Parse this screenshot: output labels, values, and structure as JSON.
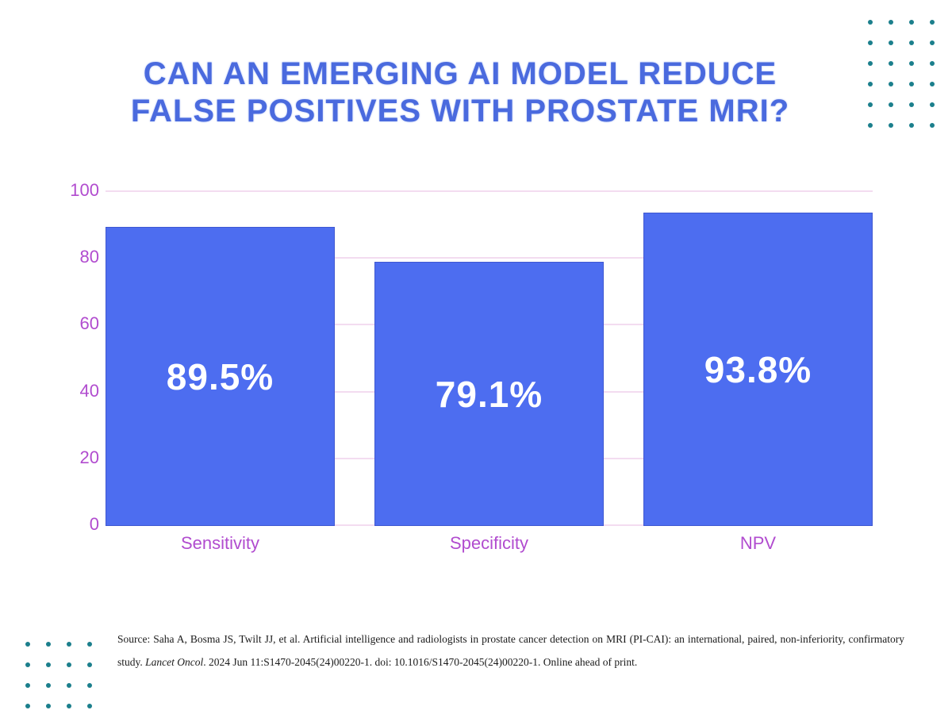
{
  "title": {
    "line1": "CAN AN EMERGING AI MODEL REDUCE",
    "line2": "FALSE POSITIVES WITH PROSTATE MRI?"
  },
  "chart_data": {
    "type": "bar",
    "categories": [
      "Sensitivity",
      "Specificity",
      "NPV"
    ],
    "values": [
      89.5,
      79.1,
      93.8
    ],
    "bar_labels": [
      "89.5%",
      "79.1%",
      "93.8%"
    ],
    "yticks": [
      0,
      20,
      40,
      60,
      80,
      100
    ],
    "ylim": [
      0,
      100
    ],
    "grid": true,
    "legend": "none",
    "title": "",
    "xlabel": "",
    "ylabel": ""
  },
  "colors": {
    "title_blue": "#4a6ade",
    "bar_blue": "#4d6df0",
    "bar_border": "#2f3faa",
    "axis_purple": "#b14ccf",
    "gridline_pink": "#f3dcf0",
    "dot_teal": "#1b7f8c",
    "value_label_white": "#ffffff",
    "source_text": "#1a1a1a"
  },
  "decor": {
    "top_right_dots": {
      "rows": 6,
      "cols": 4
    },
    "bottom_left_dots": {
      "rows": 4,
      "cols": 4
    }
  },
  "footer": {
    "source_prefix": "Source: Saha A, Bosma JS, Twilt JJ, et al. Artificial intelligence and radiologists in prostate cancer detection on MRI (PI-CAI): an international, paired, non-inferiority, confirmatory study. ",
    "source_italic": "Lancet Oncol",
    "source_suffix": ". 2024 Jun 11:S1470-2045(24)00220-1. doi: 10.1016/S1470-2045(24)00220-1. Online ahead of print."
  }
}
